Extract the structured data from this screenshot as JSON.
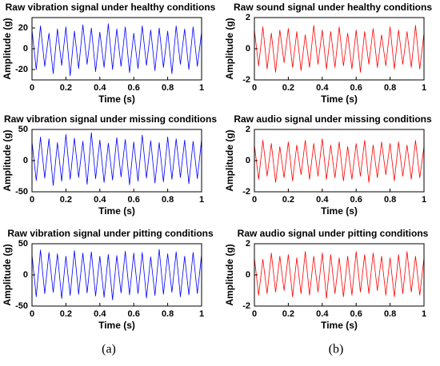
{
  "chart_data": [
    {
      "type": "line",
      "title": "Raw vibration signal under healthy conditions",
      "xlabel": "Time (s)",
      "ylabel": "Amplitude (g)",
      "color": "#0000ff",
      "x": [
        0,
        0.025,
        0.05,
        0.075,
        0.1,
        0.125,
        0.15,
        0.175,
        0.2,
        0.225,
        0.25,
        0.275,
        0.3,
        0.325,
        0.35,
        0.375,
        0.4,
        0.425,
        0.45,
        0.475,
        0.5,
        0.525,
        0.55,
        0.575,
        0.6,
        0.625,
        0.65,
        0.675,
        0.7,
        0.725,
        0.75,
        0.775,
        0.8,
        0.825,
        0.85,
        0.875,
        0.9,
        0.925,
        0.95,
        0.975,
        1
      ],
      "values": [
        18,
        -20,
        22,
        -17,
        15,
        -24,
        19,
        -16,
        21,
        -26,
        17,
        -19,
        23,
        -15,
        20,
        -22,
        16,
        -18,
        24,
        -20,
        19,
        -17,
        21,
        -23,
        15,
        -19,
        22,
        -16,
        18,
        -21,
        20,
        -18,
        17,
        -24,
        22,
        -15,
        19,
        -20,
        21,
        -17,
        16
      ],
      "xlim": [
        0,
        1
      ],
      "xticks": [
        0,
        0.2,
        0.4,
        0.6,
        0.8,
        1
      ],
      "ylim": [
        -30,
        30
      ],
      "yticks": [
        -20,
        0,
        20
      ]
    },
    {
      "type": "line",
      "title": "Raw sound signal under healthy conditions",
      "xlabel": "Time (s)",
      "ylabel": "Amplitude (g)",
      "color": "#ff0000",
      "x": [
        0,
        0.025,
        0.05,
        0.075,
        0.1,
        0.125,
        0.15,
        0.175,
        0.2,
        0.225,
        0.25,
        0.275,
        0.3,
        0.325,
        0.35,
        0.375,
        0.4,
        0.425,
        0.45,
        0.475,
        0.5,
        0.525,
        0.55,
        0.575,
        0.6,
        0.625,
        0.65,
        0.675,
        0.7,
        0.725,
        0.75,
        0.775,
        0.8,
        0.825,
        0.85,
        0.875,
        0.9,
        0.925,
        0.95,
        0.975,
        1
      ],
      "values": [
        1.2,
        -1.1,
        1.4,
        -1.3,
        1.0,
        -1.5,
        1.2,
        -0.9,
        1.3,
        -1.2,
        1.1,
        -1.4,
        0.9,
        -1.2,
        1.5,
        -1.0,
        1.2,
        -1.3,
        1.1,
        -1.2,
        1.4,
        -1.1,
        1.0,
        -1.3,
        1.2,
        -1.5,
        1.1,
        -1.0,
        1.3,
        -1.2,
        0.9,
        -1.1,
        1.4,
        -1.3,
        1.2,
        -1.0,
        1.1,
        -1.2,
        1.5,
        -1.3,
        1.0
      ],
      "xlim": [
        0,
        1
      ],
      "xticks": [
        0,
        0.2,
        0.4,
        0.6,
        0.8,
        1
      ],
      "ylim": [
        -2,
        2
      ],
      "yticks": [
        -2,
        0,
        2
      ]
    },
    {
      "type": "line",
      "title": "Raw vibration signal under missing conditions",
      "xlabel": "Time (s)",
      "ylabel": "Amplitude (g)",
      "color": "#0000ff",
      "x": [
        0,
        0.025,
        0.05,
        0.075,
        0.1,
        0.125,
        0.15,
        0.175,
        0.2,
        0.225,
        0.25,
        0.275,
        0.3,
        0.325,
        0.35,
        0.375,
        0.4,
        0.425,
        0.45,
        0.475,
        0.5,
        0.525,
        0.55,
        0.575,
        0.6,
        0.625,
        0.65,
        0.675,
        0.7,
        0.725,
        0.75,
        0.775,
        0.8,
        0.825,
        0.85,
        0.875,
        0.9,
        0.925,
        0.95,
        0.975,
        1
      ],
      "values": [
        30,
        -32,
        38,
        -28,
        35,
        -40,
        29,
        -33,
        42,
        -30,
        36,
        -27,
        31,
        -38,
        45,
        -29,
        33,
        -35,
        28,
        -31,
        37,
        -26,
        34,
        -39,
        30,
        -33,
        41,
        -28,
        32,
        -36,
        29,
        -34,
        38,
        -30,
        35,
        -27,
        33,
        -37,
        31,
        -29,
        34
      ],
      "xlim": [
        0,
        1
      ],
      "xticks": [
        0,
        0.2,
        0.4,
        0.6,
        0.8,
        1
      ],
      "ylim": [
        -50,
        50
      ],
      "yticks": [
        -50,
        0,
        50
      ]
    },
    {
      "type": "line",
      "title": "Raw audio signal under missing conditions",
      "xlabel": "Time (s)",
      "ylabel": "Amplitude (g)",
      "color": "#ff0000",
      "x": [
        0,
        0.025,
        0.05,
        0.075,
        0.1,
        0.125,
        0.15,
        0.175,
        0.2,
        0.225,
        0.25,
        0.275,
        0.3,
        0.325,
        0.35,
        0.375,
        0.4,
        0.425,
        0.45,
        0.475,
        0.5,
        0.525,
        0.55,
        0.575,
        0.6,
        0.625,
        0.65,
        0.675,
        0.7,
        0.725,
        0.75,
        0.775,
        0.8,
        0.825,
        0.85,
        0.875,
        0.9,
        0.925,
        0.95,
        0.975,
        1
      ],
      "values": [
        1.0,
        -1.2,
        1.3,
        -1.0,
        1.1,
        -1.4,
        0.9,
        -1.1,
        1.2,
        -1.3,
        1.0,
        -0.9,
        1.3,
        -1.2,
        1.1,
        -1.0,
        1.4,
        -1.2,
        1.0,
        -1.1,
        1.2,
        -1.3,
        0.9,
        -1.2,
        1.1,
        -1.0,
        1.3,
        -1.4,
        1.0,
        -1.1,
        1.2,
        -0.9,
        1.1,
        -1.3,
        1.2,
        -1.0,
        1.0,
        -1.2,
        1.3,
        -1.1,
        0.9
      ],
      "xlim": [
        0,
        1
      ],
      "xticks": [
        0,
        0.2,
        0.4,
        0.6,
        0.8,
        1
      ],
      "ylim": [
        -2,
        2
      ],
      "yticks": [
        -2,
        0,
        2
      ]
    },
    {
      "type": "line",
      "title": "Raw vibration signal under pitting conditions",
      "xlabel": "Time (s)",
      "ylabel": "Amplitude (g)",
      "color": "#0000ff",
      "x": [
        0,
        0.025,
        0.05,
        0.075,
        0.1,
        0.125,
        0.15,
        0.175,
        0.2,
        0.225,
        0.25,
        0.275,
        0.3,
        0.325,
        0.35,
        0.375,
        0.4,
        0.425,
        0.45,
        0.475,
        0.5,
        0.525,
        0.55,
        0.575,
        0.6,
        0.625,
        0.65,
        0.675,
        0.7,
        0.725,
        0.75,
        0.775,
        0.8,
        0.825,
        0.85,
        0.875,
        0.9,
        0.925,
        0.95,
        0.975,
        1
      ],
      "values": [
        32,
        -35,
        40,
        -30,
        36,
        -28,
        34,
        -38,
        30,
        -33,
        39,
        -31,
        35,
        -29,
        37,
        -34,
        30,
        -36,
        33,
        -40,
        31,
        -29,
        38,
        -32,
        35,
        -30,
        36,
        -37,
        29,
        -33,
        41,
        -31,
        34,
        -28,
        37,
        -35,
        30,
        -32,
        36,
        -30,
        33
      ],
      "xlim": [
        0,
        1
      ],
      "xticks": [
        0,
        0.2,
        0.4,
        0.6,
        0.8,
        1
      ],
      "ylim": [
        -50,
        50
      ],
      "yticks": [
        -50,
        0,
        50
      ]
    },
    {
      "type": "line",
      "title": "Raw audio signal under pitting conditions",
      "xlabel": "Time (s)",
      "ylabel": "Amplitude (g)",
      "color": "#ff0000",
      "x": [
        0,
        0.025,
        0.05,
        0.075,
        0.1,
        0.125,
        0.15,
        0.175,
        0.2,
        0.225,
        0.25,
        0.275,
        0.3,
        0.325,
        0.35,
        0.375,
        0.4,
        0.425,
        0.45,
        0.475,
        0.5,
        0.525,
        0.55,
        0.575,
        0.6,
        0.625,
        0.65,
        0.675,
        0.7,
        0.725,
        0.75,
        0.775,
        0.8,
        0.825,
        0.85,
        0.875,
        0.9,
        0.925,
        0.95,
        0.975,
        1
      ],
      "values": [
        1.1,
        -1.3,
        1.0,
        -1.2,
        1.4,
        -1.1,
        1.2,
        -1.0,
        1.3,
        -1.4,
        1.1,
        -1.2,
        1.5,
        -1.3,
        1.2,
        -1.1,
        1.4,
        -1.5,
        1.3,
        -1.2,
        1.1,
        -1.4,
        1.2,
        -1.3,
        1.5,
        -1.1,
        1.3,
        -1.2,
        1.4,
        -1.0,
        1.2,
        -1.3,
        1.1,
        -1.4,
        1.3,
        -1.2,
        1.5,
        -1.1,
        1.2,
        -1.3,
        1.1
      ],
      "xlim": [
        0,
        1
      ],
      "xticks": [
        0,
        0.2,
        0.4,
        0.6,
        0.8,
        1
      ],
      "ylim": [
        -2,
        2
      ],
      "yticks": [
        -2,
        0,
        2
      ]
    }
  ],
  "captions": [
    "(a)",
    "(b)"
  ]
}
